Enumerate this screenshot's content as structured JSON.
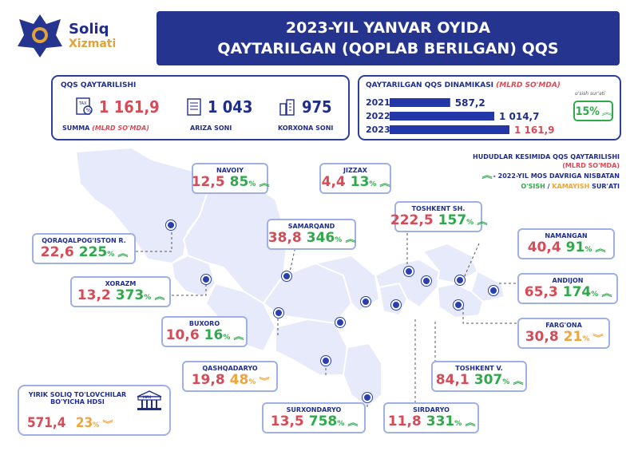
{
  "logo": {
    "line1": "Soliq",
    "line2": "Xizmati"
  },
  "header": {
    "line1": "2023-YIL YANVAR OYIDA",
    "line2": "QAYTARILGAN (QOPLAB BERILGAN) QQS"
  },
  "refund_panel": {
    "title": "QQS QAYTARILISHI",
    "summa_value": "1 161,9",
    "summa_label": "SUMMA",
    "summa_unit": "(MLRD SO'MDA)",
    "ariza_value": "1 043",
    "ariza_label": "ARIZA SONI",
    "korxona_value": "975",
    "korxona_label": "KORXONA SONI"
  },
  "dynamics_panel": {
    "title": "QAYTARILGAN QQS DINAMIKASI",
    "unit": "(MLRD SO'MDA)",
    "growth_label": "o'sish sur'ati",
    "growth_value": "15%"
  },
  "chart_data": {
    "type": "bar",
    "categories": [
      "2021",
      "2022",
      "2023"
    ],
    "values": [
      587.2,
      1014.7,
      1161.9
    ],
    "value_labels": [
      "587,2",
      "1 014,7",
      "1 161,9"
    ],
    "title": "QAYTARILGAN QQS DINAMIKASI",
    "xlim": [
      0,
      1161.9
    ]
  },
  "legend": {
    "title": "HUDUDLAR KESIMIDA QQS QAYTARILISHI",
    "unit": "(MLRD SO'MDA)",
    "line2": "- 2022-YIL MOS DAVRIGA NISBATAN",
    "grow": "O'SISH",
    "sep": "/",
    "drop": "KAMAYISH",
    "rate": "SUR'ATI"
  },
  "regions": [
    {
      "name": "NAVOIY",
      "value": "12,5",
      "pct": "85",
      "trend": "up"
    },
    {
      "name": "JIZZAX",
      "value": "4,4",
      "pct": "13",
      "trend": "up"
    },
    {
      "name": "TOSHKENT SH.",
      "value": "222,5",
      "pct": "157",
      "trend": "up"
    },
    {
      "name": "SAMARQAND",
      "value": "38,8",
      "pct": "346",
      "trend": "up"
    },
    {
      "name": "QORAQALPOG'ISTON R.",
      "value": "22,6",
      "pct": "225",
      "trend": "up"
    },
    {
      "name": "NAMANGAN",
      "value": "40,4",
      "pct": "91",
      "trend": "up"
    },
    {
      "name": "XORAZM",
      "value": "13,2",
      "pct": "373",
      "trend": "up"
    },
    {
      "name": "ANDIJON",
      "value": "65,3",
      "pct": "174",
      "trend": "up"
    },
    {
      "name": "BUXORO",
      "value": "10,6",
      "pct": "16",
      "trend": "up"
    },
    {
      "name": "FARG'ONA",
      "value": "30,8",
      "pct": "21",
      "trend": "down"
    },
    {
      "name": "QASHQADARYO",
      "value": "19,8",
      "pct": "48",
      "trend": "down"
    },
    {
      "name": "TOSHKENT V.",
      "value": "84,1",
      "pct": "307",
      "trend": "up"
    },
    {
      "name": "SURXONDARYO",
      "value": "13,5",
      "pct": "758",
      "trend": "up"
    },
    {
      "name": "SIRDARYO",
      "value": "11,8",
      "pct": "331",
      "trend": "up"
    }
  ],
  "big_taxpayers": {
    "line1": "YIRIK SOLIQ TO'LOVCHILAR",
    "line2": "BO'YICHA HDSI",
    "value": "571,4",
    "pct": "23",
    "trend": "down",
    "icon_text": "MPH"
  },
  "pct_sign": "%",
  "colors": {
    "navy": "#24348f",
    "up": "#2faa4a",
    "down": "#f0a43a",
    "value": "#d84a55",
    "map": "#e6eafa"
  }
}
